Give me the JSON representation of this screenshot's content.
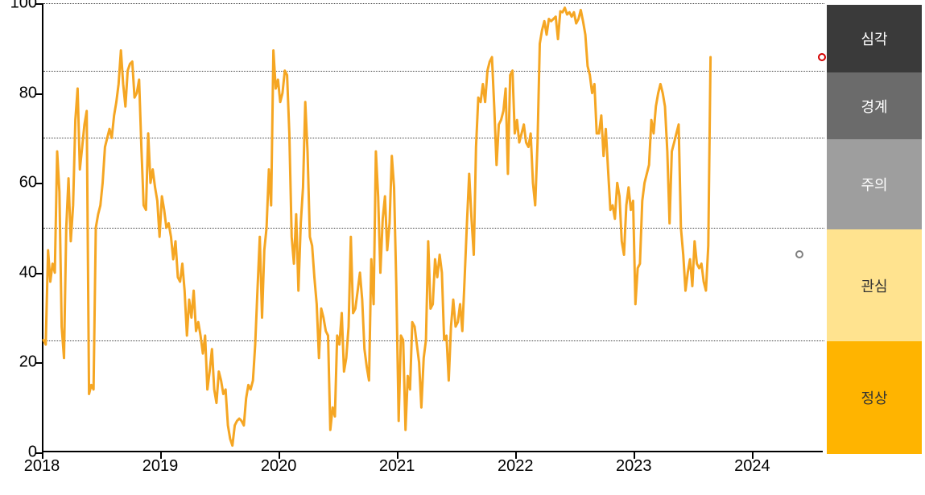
{
  "chart": {
    "type": "line",
    "background_color": "#ffffff",
    "line_color": "#f5a623",
    "line_width": 3,
    "grid_color": "#444444",
    "grid_style": "dotted",
    "axis_color": "#000000",
    "ylim": [
      0,
      100
    ],
    "y_ticks": [
      0,
      20,
      40,
      60,
      80,
      100
    ],
    "threshold_lines": [
      25,
      50,
      70,
      85,
      100
    ],
    "x_ticks": [
      {
        "pos": 0,
        "label": "2018"
      },
      {
        "pos": 52,
        "label": "2019"
      },
      {
        "pos": 104,
        "label": "2020"
      },
      {
        "pos": 156,
        "label": "2021"
      },
      {
        "pos": 208,
        "label": "2022"
      },
      {
        "pos": 260,
        "label": "2023"
      },
      {
        "pos": 312,
        "label": "2024"
      }
    ],
    "x_range": 343,
    "y_label_fontsize": 20,
    "x_label_fontsize": 20,
    "series": [
      25,
      24,
      45,
      38,
      42,
      40,
      67,
      58,
      28,
      21,
      50,
      61,
      47,
      55,
      74,
      81,
      63,
      68,
      73,
      76,
      13,
      15,
      14,
      50,
      53,
      55,
      60,
      68,
      70,
      72,
      70,
      75,
      78,
      82,
      89.5,
      82,
      77,
      85,
      86.5,
      87,
      79,
      80,
      83,
      68,
      55,
      54,
      71,
      60,
      63,
      59,
      56,
      48,
      57,
      54,
      50,
      51,
      48,
      43,
      47,
      39,
      38,
      42,
      36,
      26,
      34,
      30,
      36,
      27,
      29,
      26,
      22,
      26,
      14,
      18,
      23,
      14,
      11,
      18,
      16,
      13,
      14,
      6,
      3,
      1.5,
      6,
      7,
      7.5,
      7,
      6,
      12,
      15,
      14,
      16,
      24,
      36,
      48,
      30,
      45,
      50,
      63,
      55,
      89.5,
      81,
      83,
      78,
      80,
      85,
      84,
      71,
      48,
      42,
      53,
      36,
      51,
      59,
      78,
      67,
      48,
      46,
      39,
      33,
      21,
      32,
      30,
      27,
      26,
      5,
      10,
      8,
      26,
      24,
      31,
      18,
      21,
      28,
      48,
      31,
      32,
      36,
      40,
      34,
      23,
      19,
      16,
      43,
      33,
      67,
      57,
      40,
      52,
      57,
      45,
      51,
      66,
      59,
      37,
      7,
      26,
      25,
      5,
      17,
      14,
      29,
      28,
      24,
      20,
      10,
      21,
      25,
      47,
      32,
      33,
      43,
      39,
      44,
      40,
      25,
      26,
      16,
      28,
      34,
      28,
      29,
      33,
      27,
      39,
      51,
      62,
      52,
      44,
      68,
      79,
      78,
      82,
      78,
      85,
      87,
      88,
      77,
      64,
      73,
      74,
      76,
      81,
      62,
      84,
      85,
      71,
      74,
      69,
      71,
      73,
      69,
      68,
      71,
      60,
      55,
      69,
      91,
      94,
      96,
      93,
      96.5,
      96,
      96.5,
      97,
      92,
      98.2,
      98,
      99,
      97.5,
      98,
      97,
      98,
      95.5,
      96.5,
      98.5,
      96,
      93,
      86,
      84,
      80,
      82,
      71,
      71,
      75,
      66,
      72,
      63,
      54,
      55,
      52,
      60,
      57,
      47,
      44,
      55,
      59,
      54,
      56,
      33,
      41,
      42,
      56,
      60,
      62,
      64,
      74,
      71,
      77,
      80,
      82,
      80,
      77,
      67,
      51,
      67,
      69,
      71,
      73,
      50,
      44,
      36,
      40,
      43,
      37,
      47,
      42,
      41,
      42,
      38,
      36,
      46,
      88
    ],
    "markers": [
      {
        "name": "prev-marker",
        "x": 332,
        "y": 44,
        "border_color": "#808080"
      },
      {
        "name": "latest-marker",
        "x": 342,
        "y": 88,
        "border_color": "#d40000"
      }
    ]
  },
  "legend": {
    "bands": [
      {
        "label": "심각",
        "from": 85,
        "to": 100,
        "bg": "#3a3a3a",
        "fg": "#ffffff"
      },
      {
        "label": "경계",
        "from": 70,
        "to": 85,
        "bg": "#6b6b6b",
        "fg": "#ffffff"
      },
      {
        "label": "주의",
        "from": 50,
        "to": 70,
        "bg": "#9e9e9e",
        "fg": "#ffffff"
      },
      {
        "label": "관심",
        "from": 25,
        "to": 50,
        "bg": "#ffe38f",
        "fg": "#333333"
      },
      {
        "label": "정상",
        "from": 0,
        "to": 25,
        "bg": "#ffb400",
        "fg": "#333333"
      }
    ]
  }
}
